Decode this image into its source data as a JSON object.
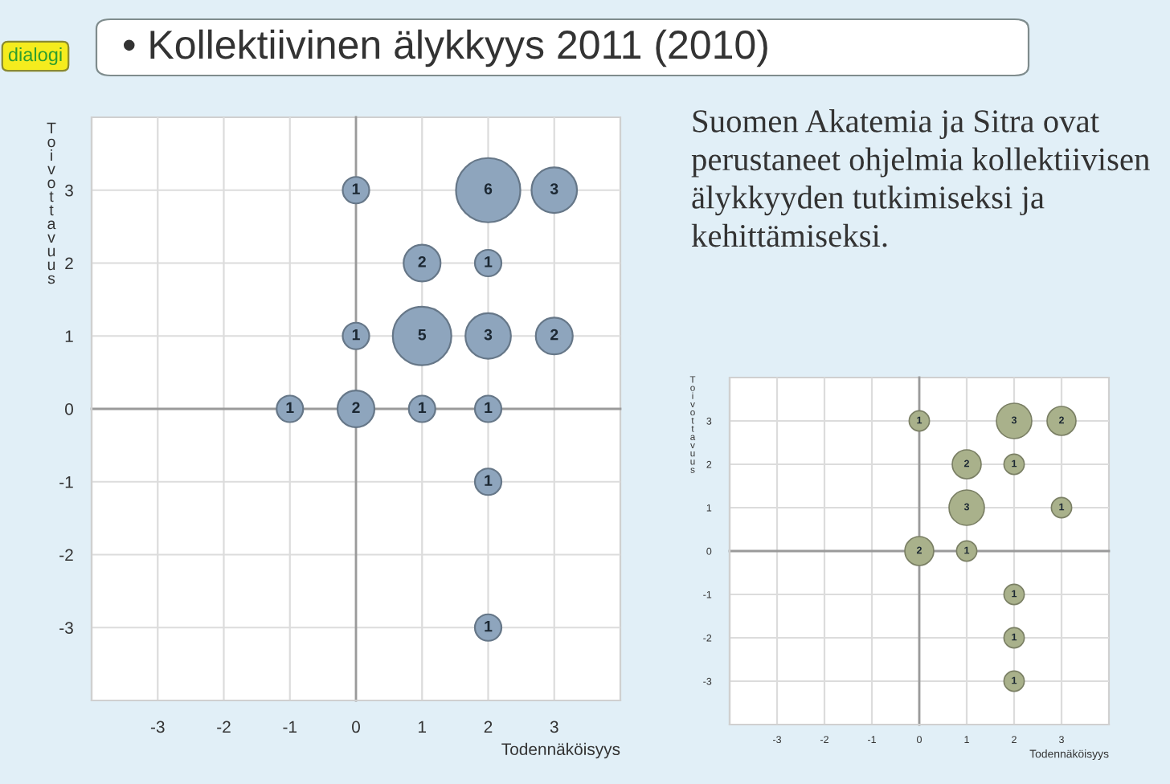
{
  "chart_data": [
    {
      "type": "bubble",
      "title": "• Kollektiivinen älykkyys 2011 (2010)",
      "xlabel": "Todennäköisyys",
      "ylabel": "Toivottavuus",
      "annotations": [
        "dialogi",
        {
          "text": "1",
          "x": 0,
          "y": 3
        },
        {
          "text": "6",
          "x": 2,
          "y": 3
        },
        {
          "text": "3",
          "x": 3,
          "y": 3
        },
        {
          "text": "2",
          "x": 1,
          "y": 2
        },
        {
          "text": "1",
          "x": 2,
          "y": 2
        },
        {
          "text": "1",
          "x": 0,
          "y": 1
        },
        {
          "text": "5",
          "x": 1,
          "y": 1
        },
        {
          "text": "3",
          "x": 2,
          "y": 1
        },
        {
          "text": "2",
          "x": 3,
          "y": 1
        },
        {
          "text": "1",
          "x": -1,
          "y": 0
        },
        {
          "text": "2",
          "x": 0,
          "y": 0
        },
        {
          "text": "1",
          "x": 1,
          "y": 0
        },
        {
          "text": "1",
          "x": 2,
          "y": 0
        },
        {
          "text": "1",
          "x": 2,
          "y": -1
        },
        {
          "text": "1",
          "x": 2,
          "y": -3
        }
      ],
      "series": [
        {
          "color": "#8ea5bd",
          "x": [
            0,
            2,
            3,
            1,
            2,
            0,
            1,
            2,
            3,
            -1,
            0,
            1,
            2,
            2,
            2
          ],
          "values": [
            3,
            3,
            3,
            2,
            2,
            1,
            1,
            1,
            1,
            0,
            0,
            0,
            0,
            -1,
            -3
          ],
          "sizes": [
            0.17,
            1,
            0.5,
            0.33,
            0.17,
            0.17,
            0.83,
            0.5,
            0.33,
            0.17,
            0.33,
            0.17,
            0.17,
            0.17,
            0.17
          ]
        }
      ],
      "xlim": [
        -4,
        4
      ],
      "ylim": [
        -4,
        4
      ],
      "xticks": [
        -3,
        -2,
        -1,
        0,
        1,
        2,
        3
      ],
      "yticks": [
        -3,
        -2,
        -1,
        0,
        1,
        2,
        3
      ],
      "grid": true
    },
    {
      "type": "bubble",
      "xlabel": "Todennäköisyys",
      "ylabel": "Toivottavuus",
      "annotations": [
        "Suomen Akatemia ja Sitra ovat\nperustaneet ohjelmia kollektiivisen\nälykkyyden tutkimiseksi ja\nkehittämiseksi.",
        {
          "text": "1",
          "x": 0,
          "y": 3
        },
        {
          "text": "3",
          "x": 2,
          "y": 3
        },
        {
          "text": "2",
          "x": 3,
          "y": 3
        },
        {
          "text": "2",
          "x": 1,
          "y": 2
        },
        {
          "text": "1",
          "x": 2,
          "y": 2
        },
        {
          "text": "3",
          "x": 1,
          "y": 1
        },
        {
          "text": "1",
          "x": 3,
          "y": 1
        },
        {
          "text": "2",
          "x": 0,
          "y": 0
        },
        {
          "text": "1",
          "x": 1,
          "y": 0
        },
        {
          "text": "1",
          "x": 2,
          "y": -1
        },
        {
          "text": "1",
          "x": 2,
          "y": -2
        },
        {
          "text": "1",
          "x": 2,
          "y": -3
        }
      ],
      "series": [
        {
          "color": "#a9b18b",
          "x": [
            0,
            2,
            3,
            1,
            2,
            1,
            3,
            0,
            1,
            2,
            2,
            2
          ],
          "values": [
            3,
            3,
            3,
            2,
            2,
            1,
            1,
            0,
            0,
            -1,
            -2,
            -3
          ],
          "sizes": [
            0.33,
            1,
            0.67,
            0.67,
            0.33,
            1,
            0.33,
            0.67,
            0.33,
            0.33,
            0.33,
            0.33
          ]
        }
      ],
      "xlim": [
        -4,
        4
      ],
      "ylim": [
        -4,
        4
      ],
      "xticks": [
        -3,
        -2,
        -1,
        0,
        1,
        2,
        3
      ],
      "yticks": [
        -3,
        -2,
        -1,
        0,
        1,
        2,
        3
      ],
      "grid": true
    }
  ]
}
